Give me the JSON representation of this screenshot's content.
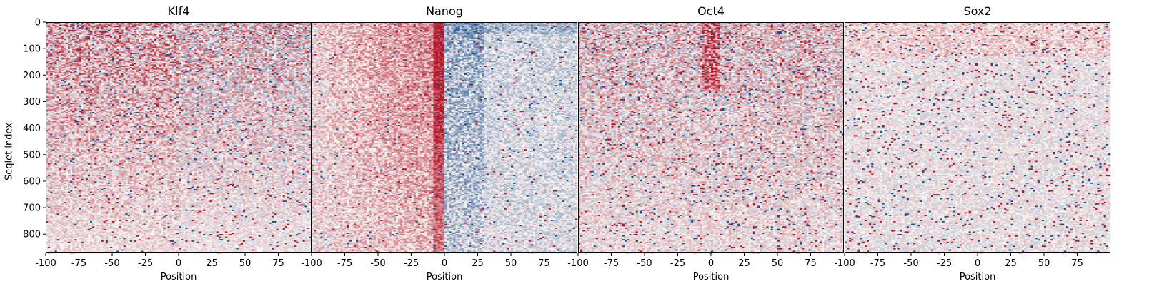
{
  "chart_data": {
    "type": "heatmap",
    "ylabel": "Seqlet index",
    "ylim": [
      872,
      0
    ],
    "y_ticks": [
      "0",
      "100",
      "200",
      "300",
      "400",
      "500",
      "600",
      "700",
      "800"
    ],
    "y_tick_values": [
      0,
      100,
      200,
      300,
      400,
      500,
      600,
      700,
      800
    ],
    "xlim": [
      -100,
      100
    ],
    "x_tick_values": [
      -100,
      -75,
      -50,
      -25,
      0,
      25,
      50,
      75
    ],
    "x_tick_labels": [
      "-100",
      "-75",
      "-50",
      "-25",
      "0",
      "25",
      "50",
      "75"
    ],
    "colormap": "RdBu_r",
    "colors": {
      "negative": "#1f4e8c",
      "neutral": "#f7f4f2",
      "positive": "#b2182b"
    },
    "panels": [
      {
        "title": "Klf4",
        "xlabel": "Position",
        "signal_profile": "noisy, strong red at top rows"
      },
      {
        "title": "Nanog",
        "xlabel": "Position",
        "signal_profile": "red band left of center, blue right of center"
      },
      {
        "title": "Oct4",
        "xlabel": "Position",
        "signal_profile": "mixed red/blue, denser near top"
      },
      {
        "title": "Sox2",
        "xlabel": "Position",
        "signal_profile": "sparse, mostly neutral with speckles"
      }
    ]
  }
}
